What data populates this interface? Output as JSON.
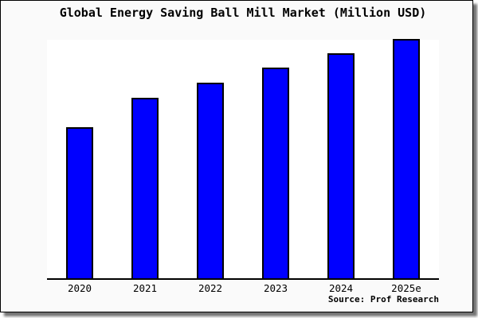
{
  "chart": {
    "title": "Global Energy Saving Ball Mill Market (Million USD)",
    "source": "Source: Prof Research",
    "colors": {
      "background": "#fafafa",
      "plot_background": "#ffffff",
      "bar_fill": "#0000ff",
      "bar_border": "#000000",
      "axis": "#000000",
      "text": "#000000"
    }
  },
  "chart_data": {
    "type": "bar",
    "title": "Global Energy Saving Ball Mill Market (Million USD)",
    "categories": [
      "2020",
      "2021",
      "2022",
      "2023",
      "2024",
      "2025e"
    ],
    "values": [
      62.9,
      75.3,
      81.6,
      88.0,
      94.0,
      100
    ],
    "series_note": "no numeric y-axis shown in image; values are relative bar heights normalized to 2025e = 100",
    "xlabel": "",
    "ylabel": "",
    "ylim": [
      0,
      100
    ],
    "grid": false,
    "legend": false,
    "annotations": [
      "Source: Prof Research"
    ]
  }
}
